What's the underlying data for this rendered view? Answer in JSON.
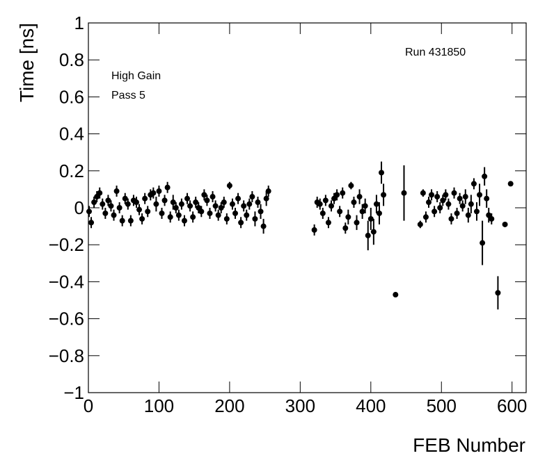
{
  "chart_data": {
    "type": "errorbar",
    "x_label": "FEB Number",
    "y_label": "Time [ns]",
    "annotations": [
      "Run 431850",
      "High Gain",
      "Pass 5"
    ],
    "xlim": [
      0,
      620
    ],
    "ylim": [
      -1,
      1
    ],
    "xticks": [
      0,
      100,
      200,
      300,
      400,
      500,
      600
    ],
    "yticks": [
      {
        "value": -1,
        "label": "−1"
      },
      {
        "value": -0.8,
        "label": "−0.8"
      },
      {
        "value": -0.6,
        "label": "−0.6"
      },
      {
        "value": -0.4,
        "label": "−0.4"
      },
      {
        "value": -0.2,
        "label": "−0.2"
      },
      0,
      0.2,
      0.4,
      0.6,
      0.8,
      1
    ],
    "series": [
      {
        "color": "#000000",
        "x": [
          1,
          4,
          8,
          12,
          16,
          20,
          24,
          28,
          32,
          36,
          40,
          44,
          48,
          52,
          56,
          60,
          64,
          68,
          72,
          76,
          80,
          84,
          88,
          92,
          96,
          100,
          104,
          108,
          112,
          116,
          120,
          124,
          128,
          132,
          136,
          140,
          144,
          148,
          152,
          156,
          160,
          164,
          168,
          172,
          176,
          180,
          184,
          188,
          192,
          196,
          200,
          204,
          208,
          212,
          216,
          220,
          224,
          228,
          232,
          236,
          240,
          244,
          248,
          252,
          255,
          320,
          324,
          328,
          332,
          336,
          340,
          344,
          348,
          352,
          356,
          360,
          364,
          368,
          372,
          376,
          380,
          384,
          388,
          392,
          396,
          400,
          404,
          408,
          412,
          415,
          418,
          435,
          447,
          470,
          474,
          478,
          482,
          486,
          490,
          494,
          498,
          502,
          506,
          510,
          514,
          518,
          522,
          526,
          530,
          534,
          538,
          542,
          546,
          550,
          554,
          558,
          561,
          564,
          567,
          571,
          580,
          590,
          598
        ],
        "values": [
          -0.02,
          -0.08,
          0.03,
          0.06,
          0.08,
          0.02,
          -0.03,
          0.04,
          0.01,
          -0.04,
          0.09,
          0,
          -0.07,
          0.05,
          0.02,
          -0.07,
          0.04,
          0.03,
          -0.01,
          -0.06,
          0.05,
          -0.02,
          0.07,
          0.08,
          0.02,
          0.09,
          -0.03,
          0.04,
          0.11,
          -0.05,
          0.03,
          0,
          -0.04,
          0.02,
          -0.07,
          0.05,
          0.01,
          -0.05,
          0.03,
          0,
          -0.02,
          0.07,
          0.04,
          -0.03,
          0.06,
          0.01,
          -0.04,
          0,
          0.03,
          -0.06,
          0.12,
          0.02,
          -0.03,
          0.05,
          -0.08,
          0.01,
          -0.04,
          0.02,
          0.06,
          -0.06,
          0.03,
          -0.02,
          -0.1,
          0.05,
          0.09,
          -0.12,
          0.03,
          0.02,
          -0.03,
          0.04,
          -0.08,
          0.01,
          0.05,
          0.07,
          -0.02,
          0.08,
          -0.11,
          -0.05,
          0.12,
          0.03,
          -0.08,
          0.06,
          -0.02,
          0.01,
          -0.15,
          -0.06,
          -0.13,
          0.02,
          -0.03,
          0.19,
          0.07,
          -0.47,
          0.08,
          -0.09,
          0.08,
          -0.05,
          0.03,
          0.07,
          -0.02,
          0.06,
          0,
          0.04,
          0.07,
          0.02,
          -0.06,
          0.08,
          -0.03,
          0.05,
          0.01,
          0.06,
          -0.04,
          0.02,
          0.13,
          -0.02,
          0.07,
          -0.19,
          0.17,
          0.05,
          -0.04,
          -0.06,
          -0.46,
          -0.09,
          0.13
        ],
        "errors": [
          0.03,
          0.03,
          0.03,
          0.03,
          0.03,
          0.03,
          0.03,
          0.03,
          0.03,
          0.03,
          0.03,
          0.03,
          0.03,
          0.03,
          0.03,
          0.03,
          0.03,
          0.03,
          0.03,
          0.03,
          0.03,
          0.03,
          0.03,
          0.03,
          0.04,
          0.03,
          0.03,
          0.03,
          0.03,
          0.03,
          0.04,
          0.03,
          0.03,
          0.03,
          0.03,
          0.03,
          0.03,
          0.03,
          0.03,
          0.03,
          0.03,
          0.03,
          0.03,
          0.03,
          0.03,
          0.03,
          0.03,
          0.03,
          0.03,
          0.03,
          0.02,
          0.03,
          0.03,
          0.03,
          0.03,
          0.03,
          0.03,
          0.03,
          0.03,
          0.04,
          0.03,
          0.04,
          0.04,
          0.04,
          0.03,
          0.03,
          0.03,
          0.03,
          0.03,
          0.03,
          0.03,
          0.03,
          0.03,
          0.03,
          0.03,
          0.03,
          0.03,
          0.04,
          0.02,
          0.03,
          0.04,
          0.04,
          0.04,
          0.04,
          0.08,
          0.06,
          0.07,
          0.05,
          0.06,
          0.06,
          0.06,
          0.01,
          0.15,
          0.02,
          0.02,
          0.03,
          0.03,
          0.03,
          0.03,
          0.03,
          0.03,
          0.03,
          0.03,
          0.03,
          0.03,
          0.03,
          0.03,
          0.03,
          0.03,
          0.04,
          0.04,
          0.05,
          0.03,
          0.05,
          0.06,
          0.12,
          0.05,
          0.05,
          0.04,
          0.03,
          0.09,
          0.01,
          0.01
        ]
      }
    ]
  }
}
